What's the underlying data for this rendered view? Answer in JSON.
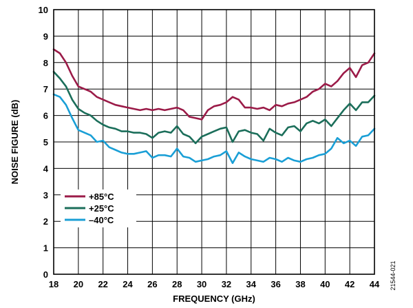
{
  "figure_id": "21544-021",
  "chart_data": {
    "type": "line",
    "title": "",
    "xlabel": "FREQUENCY (GHz)",
    "ylabel": "NOISE FIGURE (dB)",
    "xlim": [
      18,
      44
    ],
    "ylim": [
      0,
      10
    ],
    "x_ticks": [
      18,
      20,
      22,
      24,
      26,
      28,
      30,
      32,
      34,
      36,
      38,
      40,
      42,
      44
    ],
    "y_ticks": [
      0,
      1,
      2,
      3,
      4,
      5,
      6,
      7,
      8,
      9,
      10
    ],
    "grid": true,
    "legend_position": "bottom-left",
    "series": [
      {
        "name": "+85°C",
        "color": "#9b1b48",
        "x": [
          18.0,
          18.5,
          19.0,
          19.5,
          20.0,
          20.5,
          21.0,
          21.5,
          22.0,
          22.5,
          23.0,
          23.5,
          24.0,
          24.5,
          25.0,
          25.5,
          26.0,
          26.5,
          27.0,
          27.5,
          28.0,
          28.5,
          29.0,
          29.5,
          30.0,
          30.5,
          31.0,
          31.5,
          32.0,
          32.5,
          33.0,
          33.5,
          34.0,
          34.5,
          35.0,
          35.5,
          36.0,
          36.5,
          37.0,
          37.5,
          38.0,
          38.5,
          39.0,
          39.5,
          40.0,
          40.5,
          41.0,
          41.5,
          42.0,
          42.5,
          43.0,
          43.5,
          44.0
        ],
        "y": [
          8.5,
          8.35,
          8.0,
          7.5,
          7.1,
          7.0,
          6.9,
          6.7,
          6.6,
          6.5,
          6.4,
          6.35,
          6.3,
          6.25,
          6.2,
          6.25,
          6.2,
          6.25,
          6.2,
          6.25,
          6.3,
          6.2,
          5.95,
          5.9,
          5.85,
          6.2,
          6.35,
          6.4,
          6.5,
          6.7,
          6.6,
          6.3,
          6.3,
          6.25,
          6.3,
          6.2,
          6.4,
          6.35,
          6.45,
          6.5,
          6.6,
          6.7,
          6.9,
          7.0,
          7.2,
          7.1,
          7.3,
          7.6,
          7.8,
          7.45,
          7.9,
          8.0,
          8.35
        ]
      },
      {
        "name": "+25°C",
        "color": "#1b6e5a",
        "x": [
          18.0,
          18.5,
          19.0,
          19.5,
          20.0,
          20.5,
          21.0,
          21.5,
          22.0,
          22.5,
          23.0,
          23.5,
          24.0,
          24.5,
          25.0,
          25.5,
          26.0,
          26.5,
          27.0,
          27.5,
          28.0,
          28.5,
          29.0,
          29.5,
          30.0,
          30.5,
          31.0,
          31.5,
          32.0,
          32.5,
          33.0,
          33.5,
          34.0,
          34.5,
          35.0,
          35.5,
          36.0,
          36.5,
          37.0,
          37.5,
          38.0,
          38.5,
          39.0,
          39.5,
          40.0,
          40.5,
          41.0,
          41.5,
          42.0,
          42.5,
          43.0,
          43.5,
          44.0
        ],
        "y": [
          7.65,
          7.4,
          7.1,
          6.6,
          6.25,
          6.1,
          6.0,
          5.8,
          5.65,
          5.55,
          5.5,
          5.4,
          5.4,
          5.35,
          5.35,
          5.3,
          5.15,
          5.35,
          5.4,
          5.35,
          5.6,
          5.3,
          5.2,
          4.95,
          5.2,
          5.3,
          5.4,
          5.5,
          5.55,
          5.0,
          5.4,
          5.45,
          5.35,
          5.3,
          5.05,
          5.5,
          5.35,
          5.25,
          5.55,
          5.6,
          5.4,
          5.7,
          5.8,
          5.7,
          5.85,
          5.6,
          5.9,
          6.2,
          6.45,
          6.2,
          6.5,
          6.5,
          6.75
        ]
      },
      {
        "name": "–40°C",
        "color": "#1a9fd6",
        "x": [
          18.0,
          18.5,
          19.0,
          19.5,
          20.0,
          20.5,
          21.0,
          21.5,
          22.0,
          22.5,
          23.0,
          23.5,
          24.0,
          24.5,
          25.0,
          25.5,
          26.0,
          26.5,
          27.0,
          27.5,
          28.0,
          28.5,
          29.0,
          29.5,
          30.0,
          30.5,
          31.0,
          31.5,
          32.0,
          32.5,
          33.0,
          33.5,
          34.0,
          34.5,
          35.0,
          35.5,
          36.0,
          36.5,
          37.0,
          37.5,
          38.0,
          38.5,
          39.0,
          39.5,
          40.0,
          40.5,
          41.0,
          41.5,
          42.0,
          42.5,
          43.0,
          43.5,
          44.0
        ],
        "y": [
          6.8,
          6.7,
          6.4,
          5.9,
          5.45,
          5.35,
          5.25,
          5.0,
          5.05,
          4.8,
          4.7,
          4.6,
          4.55,
          4.55,
          4.6,
          4.65,
          4.4,
          4.5,
          4.5,
          4.45,
          4.75,
          4.45,
          4.4,
          4.25,
          4.3,
          4.35,
          4.45,
          4.5,
          4.65,
          4.2,
          4.6,
          4.45,
          4.35,
          4.3,
          4.25,
          4.4,
          4.35,
          4.25,
          4.4,
          4.3,
          4.25,
          4.35,
          4.4,
          4.5,
          4.55,
          4.75,
          5.15,
          4.95,
          5.05,
          4.85,
          5.2,
          5.25,
          5.5
        ]
      }
    ]
  }
}
